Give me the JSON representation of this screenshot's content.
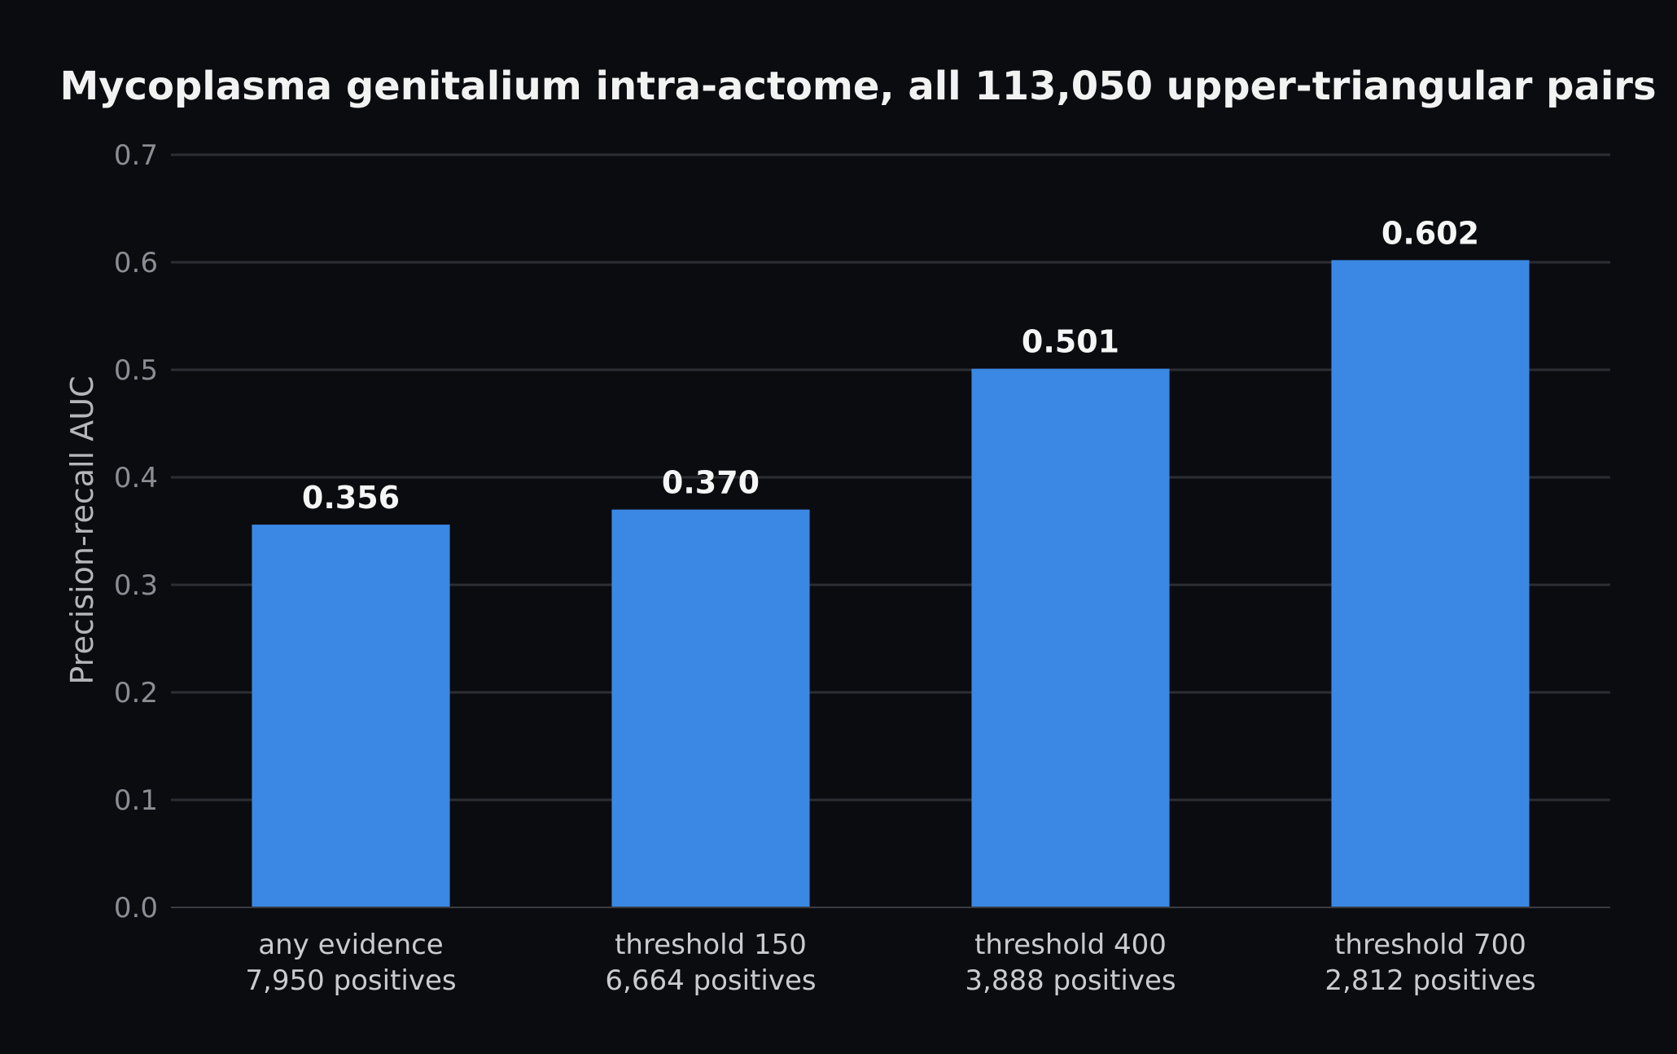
{
  "colors": {
    "background": "#0b0c10",
    "bar": "#3a88e4",
    "grid": "#2c2e33",
    "axis": "#3a3c41"
  },
  "chart_data": {
    "type": "bar",
    "title": "Mycoplasma genitalium intra-actome, all 113,050 upper-triangular pairs",
    "xlabel": "",
    "ylabel": "Precision-recall AUC",
    "ylim": [
      0,
      0.7
    ],
    "yticks": [
      "0.0",
      "0.1",
      "0.2",
      "0.3",
      "0.4",
      "0.5",
      "0.6",
      "0.7"
    ],
    "grid": true,
    "categories": [
      [
        "any evidence",
        "7,950 positives"
      ],
      [
        "threshold 150",
        "6,664 positives"
      ],
      [
        "threshold 400",
        "3,888 positives"
      ],
      [
        "threshold 700",
        "2,812 positives"
      ]
    ],
    "values": [
      0.356,
      0.37,
      0.501,
      0.602
    ],
    "value_labels": [
      "0.356",
      "0.370",
      "0.501",
      "0.602"
    ]
  }
}
